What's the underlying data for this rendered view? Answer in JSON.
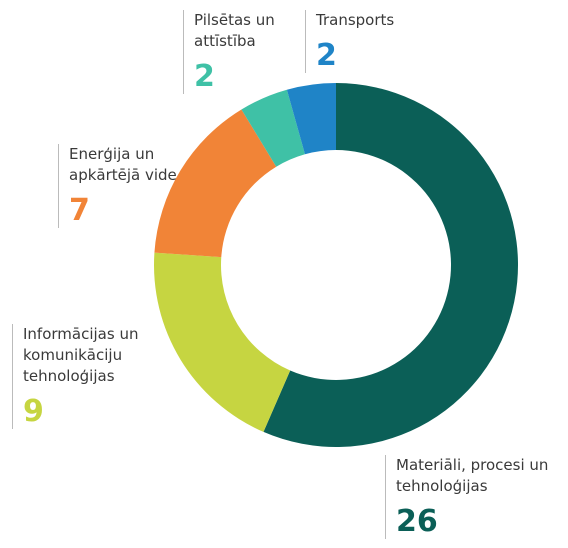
{
  "chart_data": {
    "type": "pie",
    "categories": [
      "Materiāli, procesi un tehnoloģijas",
      "Informācijas un komunikāciju tehnoloģijas",
      "Enerģija un apkārtējā vide",
      "Pilsētas un attīstība",
      "Transports"
    ],
    "values": [
      26,
      9,
      7,
      2,
      2
    ],
    "colors": [
      "#0b5f57",
      "#c6d541",
      "#f18437",
      "#3fc1a6",
      "#1f84c7"
    ],
    "donut": true
  }
}
